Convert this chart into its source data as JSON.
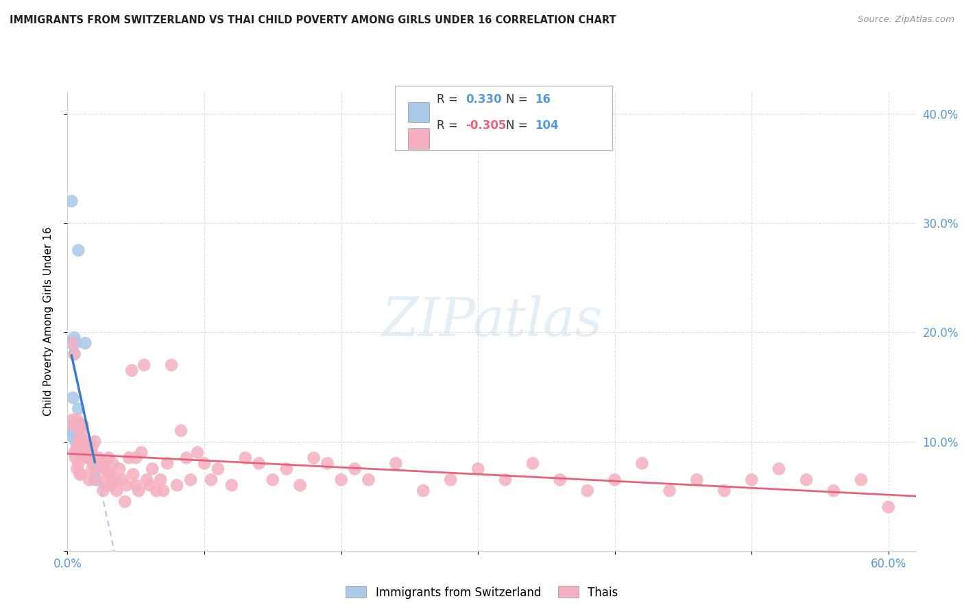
{
  "title": "IMMIGRANTS FROM SWITZERLAND VS THAI CHILD POVERTY AMONG GIRLS UNDER 16 CORRELATION CHART",
  "source": "Source: ZipAtlas.com",
  "ylabel": "Child Poverty Among Girls Under 16",
  "xlim": [
    0.0,
    0.62
  ],
  "ylim": [
    0.0,
    0.42
  ],
  "background_color": "#ffffff",
  "grid_color": "#dddddd",
  "swiss_color": "#aac8e8",
  "thai_color": "#f5afc0",
  "swiss_line_color": "#3a7ec8",
  "swiss_line_dash_color": "#aac8e8",
  "thai_line_color": "#e8607a",
  "legend_R1": "R =",
  "legend_V1": "0.330",
  "legend_N1_label": "N =",
  "legend_N1": "16",
  "legend_R2": "R =",
  "legend_V2": "-0.305",
  "legend_N2_label": "N =",
  "legend_N2": "104",
  "swiss_x": [
    0.003,
    0.004,
    0.004,
    0.005,
    0.005,
    0.006,
    0.006,
    0.007,
    0.008,
    0.008,
    0.009,
    0.01,
    0.011,
    0.013,
    0.02,
    0.003
  ],
  "swiss_y": [
    0.105,
    0.11,
    0.14,
    0.18,
    0.195,
    0.19,
    0.1,
    0.115,
    0.275,
    0.13,
    0.115,
    0.09,
    0.115,
    0.19,
    0.065,
    0.32
  ],
  "thai_x": [
    0.003,
    0.004,
    0.005,
    0.005,
    0.006,
    0.006,
    0.007,
    0.007,
    0.008,
    0.008,
    0.009,
    0.009,
    0.01,
    0.01,
    0.011,
    0.012,
    0.013,
    0.014,
    0.015,
    0.016,
    0.017,
    0.018,
    0.019,
    0.02,
    0.021,
    0.022,
    0.023,
    0.025,
    0.026,
    0.027,
    0.028,
    0.03,
    0.031,
    0.032,
    0.033,
    0.035,
    0.036,
    0.038,
    0.04,
    0.042,
    0.043,
    0.045,
    0.047,
    0.048,
    0.05,
    0.052,
    0.054,
    0.056,
    0.058,
    0.06,
    0.062,
    0.065,
    0.068,
    0.07,
    0.073,
    0.076,
    0.08,
    0.083,
    0.087,
    0.09,
    0.095,
    0.1,
    0.105,
    0.11,
    0.12,
    0.13,
    0.14,
    0.15,
    0.16,
    0.17,
    0.18,
    0.19,
    0.2,
    0.21,
    0.22,
    0.24,
    0.26,
    0.28,
    0.3,
    0.32,
    0.34,
    0.36,
    0.38,
    0.4,
    0.42,
    0.44,
    0.46,
    0.48,
    0.5,
    0.52,
    0.54,
    0.56,
    0.58,
    0.6,
    0.005,
    0.007,
    0.009,
    0.011,
    0.013,
    0.015,
    0.018,
    0.022,
    0.03,
    0.05
  ],
  "thai_y": [
    0.19,
    0.12,
    0.115,
    0.09,
    0.115,
    0.085,
    0.095,
    0.075,
    0.115,
    0.08,
    0.105,
    0.07,
    0.1,
    0.07,
    0.11,
    0.095,
    0.09,
    0.1,
    0.085,
    0.065,
    0.09,
    0.075,
    0.08,
    0.1,
    0.075,
    0.065,
    0.085,
    0.08,
    0.055,
    0.075,
    0.06,
    0.085,
    0.07,
    0.06,
    0.08,
    0.065,
    0.055,
    0.075,
    0.065,
    0.045,
    0.06,
    0.085,
    0.165,
    0.07,
    0.06,
    0.055,
    0.09,
    0.17,
    0.065,
    0.06,
    0.075,
    0.055,
    0.065,
    0.055,
    0.08,
    0.17,
    0.06,
    0.11,
    0.085,
    0.065,
    0.09,
    0.08,
    0.065,
    0.075,
    0.06,
    0.085,
    0.08,
    0.065,
    0.075,
    0.06,
    0.085,
    0.08,
    0.065,
    0.075,
    0.065,
    0.08,
    0.055,
    0.065,
    0.075,
    0.065,
    0.08,
    0.065,
    0.055,
    0.065,
    0.08,
    0.055,
    0.065,
    0.055,
    0.065,
    0.075,
    0.065,
    0.055,
    0.065,
    0.04,
    0.18,
    0.12,
    0.1,
    0.115,
    0.095,
    0.085,
    0.095,
    0.08,
    0.07,
    0.085
  ]
}
